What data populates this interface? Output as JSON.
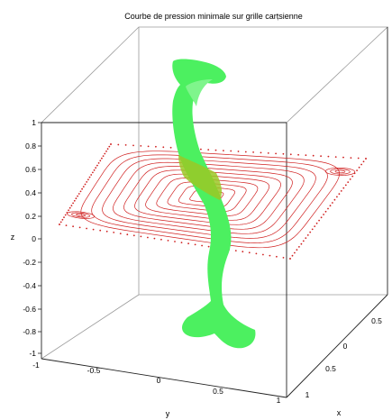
{
  "chart_data": {
    "type": "3d-surface",
    "title": "Courbe de pression minimale sur grille carṭsienne",
    "axes": {
      "z": {
        "label": "z",
        "range": [
          -1,
          1
        ],
        "ticks": [
          "1",
          "0.8",
          "0.6",
          "0.4",
          "0.2",
          "0",
          "-0.2",
          "-0.4",
          "-0.6",
          "-0.8",
          "-1"
        ]
      },
      "y": {
        "label": "y",
        "ticks": [
          "-1",
          "-0.5",
          "0",
          "0.5",
          "1"
        ]
      },
      "x": {
        "label": "x",
        "ticks": [
          "0.5",
          "0",
          "0.5",
          "1"
        ]
      }
    },
    "grid": false,
    "series": [
      {
        "kind": "isosurface",
        "color": "#4cf060"
      },
      {
        "kind": "streamlines",
        "color": "#d02020"
      }
    ]
  }
}
